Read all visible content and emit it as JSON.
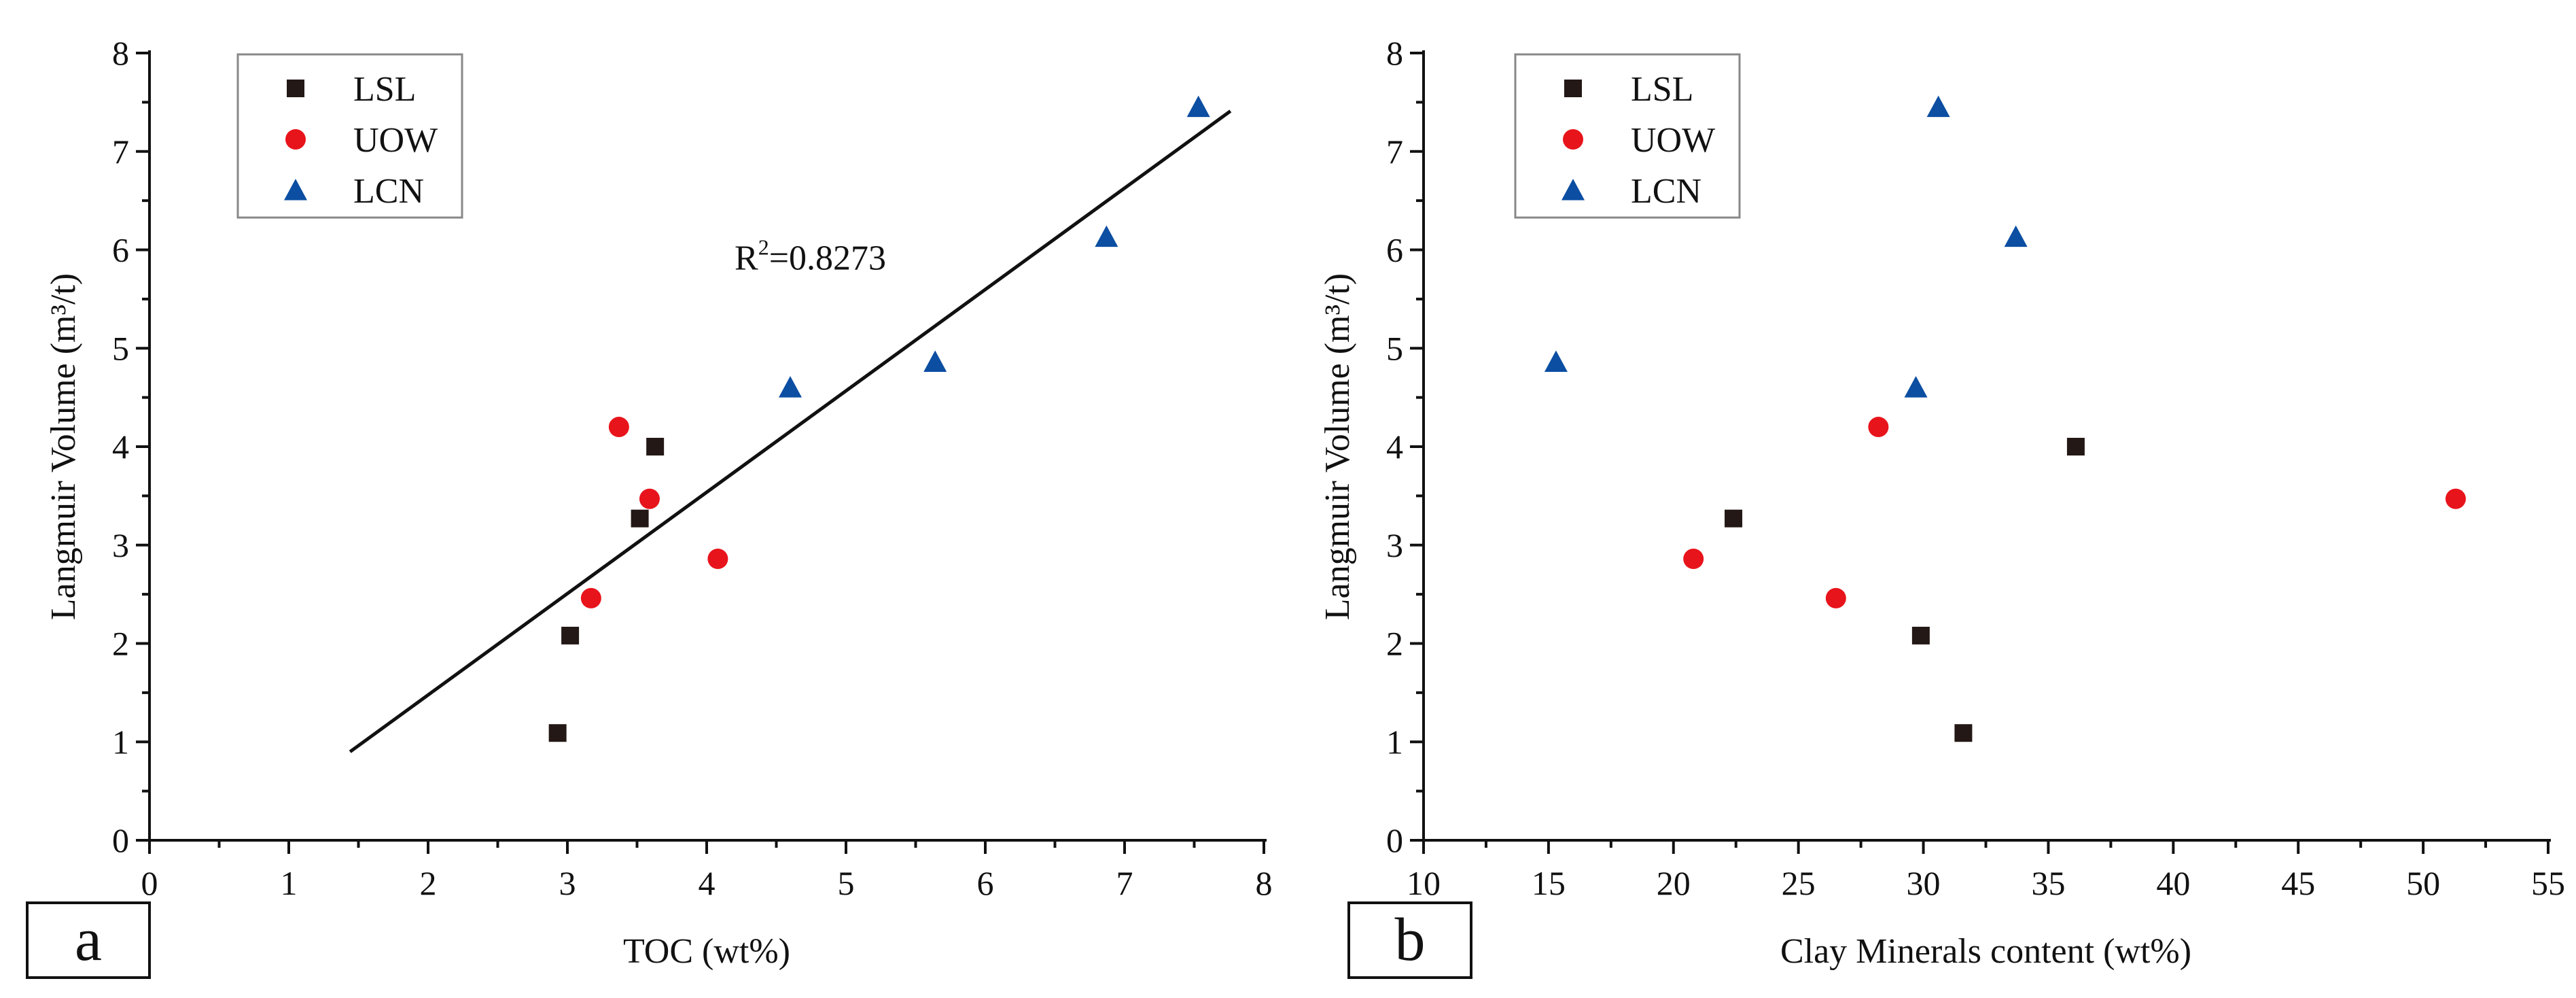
{
  "chart_data": [
    {
      "type": "scatter",
      "panel_label": "a",
      "xlabel": "TOC (wt%)",
      "ylabel": "Langmuir Volume (m³/t)",
      "xlim": [
        0,
        8
      ],
      "ylim": [
        0,
        8
      ],
      "x_ticks": [
        0,
        1,
        2,
        3,
        4,
        5,
        6,
        7,
        8
      ],
      "y_ticks": [
        0,
        1,
        2,
        3,
        4,
        5,
        6,
        7,
        8
      ],
      "legend_placement": "top-left",
      "series": [
        {
          "name": "LSL",
          "marker": "square",
          "color": "#231815",
          "x": [
            2.93,
            3.02,
            3.52,
            3.63
          ],
          "y": [
            1.09,
            2.08,
            3.27,
            4.0
          ]
        },
        {
          "name": "UOW",
          "marker": "circle",
          "color": "#e8141b",
          "x": [
            3.17,
            3.37,
            3.59,
            4.08
          ],
          "y": [
            2.46,
            4.2,
            3.47,
            2.86
          ]
        },
        {
          "name": "LCN",
          "marker": "triangle",
          "color": "#0b4ea2",
          "x": [
            4.6,
            5.64,
            6.87,
            7.53
          ],
          "y": [
            4.6,
            4.86,
            6.13,
            7.45
          ]
        }
      ],
      "fit_line": {
        "x": [
          1.44,
          7.76
        ],
        "y": [
          0.9,
          7.41
        ]
      },
      "annotation": {
        "prefix": "R",
        "superscript": "2",
        "value": "=0.8273"
      }
    },
    {
      "type": "scatter",
      "panel_label": "b",
      "xlabel": "Clay Minerals content (wt%)",
      "ylabel": "Langmuir Volume (m³/t)",
      "xlim": [
        10,
        55
      ],
      "ylim": [
        0,
        8
      ],
      "x_ticks": [
        10,
        15,
        20,
        25,
        30,
        35,
        40,
        45,
        50,
        55
      ],
      "y_ticks": [
        0,
        1,
        2,
        3,
        4,
        5,
        6,
        7,
        8
      ],
      "legend_placement": "top-left",
      "series": [
        {
          "name": "LSL",
          "marker": "square",
          "color": "#231815",
          "x": [
            22.4,
            29.9,
            31.6,
            36.1
          ],
          "y": [
            3.27,
            2.08,
            1.09,
            4.0
          ]
        },
        {
          "name": "UOW",
          "marker": "circle",
          "color": "#e8141b",
          "x": [
            20.8,
            26.5,
            28.2,
            51.3
          ],
          "y": [
            2.86,
            2.46,
            4.2,
            3.47
          ]
        },
        {
          "name": "LCN",
          "marker": "triangle",
          "color": "#0b4ea2",
          "x": [
            15.3,
            29.7,
            30.6,
            33.7
          ],
          "y": [
            4.86,
            4.6,
            7.45,
            6.13
          ]
        }
      ]
    }
  ]
}
